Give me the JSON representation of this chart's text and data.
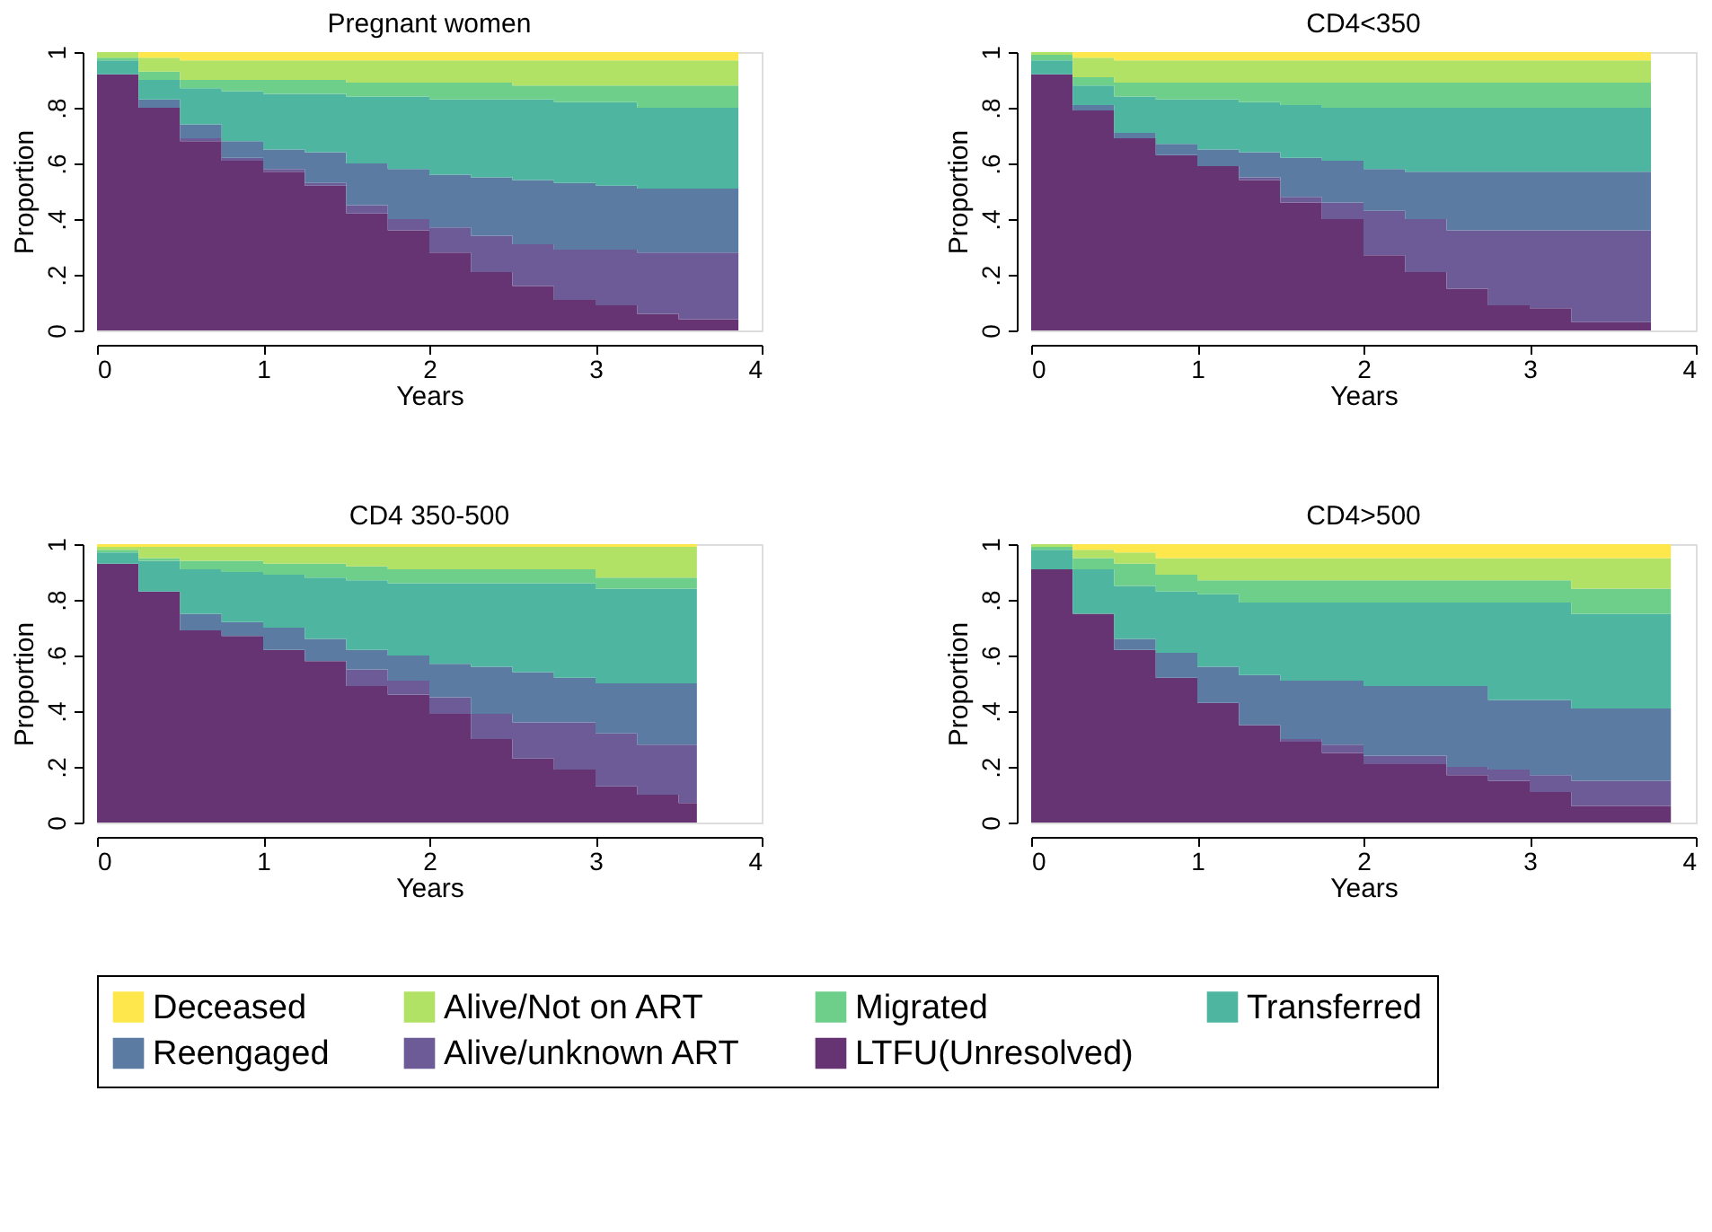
{
  "chart_data": [
    {
      "type": "area",
      "stacked": true,
      "title": "Pregnant women",
      "xlabel": "Years",
      "ylabel": "Proportion",
      "legend": "bottom",
      "xlim": [
        0,
        4
      ],
      "xticks": [
        0,
        1,
        2,
        3,
        4
      ],
      "ylim": [
        0,
        1
      ],
      "yticks": [
        0,
        {
          "value": 0.2,
          "label": ".2"
        },
        {
          "value": 0.4,
          "label": ".4"
        },
        {
          "value": 0.6,
          "label": ".6"
        },
        {
          "value": 0.8,
          "label": ".8"
        },
        1
      ],
      "x": [
        0,
        0.25,
        0.5,
        0.75,
        1,
        1.25,
        1.5,
        1.75,
        2,
        2.25,
        2.5,
        2.75,
        3,
        3.25,
        3.5,
        3.86
      ],
      "series": [
        {
          "name": "LTFU(Unresolved)",
          "color": "#673473",
          "values": [
            0.92,
            0.8,
            0.68,
            0.61,
            0.57,
            0.52,
            0.42,
            0.36,
            0.28,
            0.21,
            0.16,
            0.11,
            0.09,
            0.06,
            0.04,
            0.01
          ]
        },
        {
          "name": "Alive/unknown ART",
          "color": "#6c5b97",
          "values": [
            0,
            0,
            0.01,
            0.01,
            0.01,
            0.01,
            0.03,
            0.04,
            0.09,
            0.13,
            0.15,
            0.18,
            0.2,
            0.22,
            0.24,
            0.27
          ]
        },
        {
          "name": "Reengaged",
          "color": "#5b7ba3",
          "values": [
            0,
            0.03,
            0.05,
            0.06,
            0.07,
            0.11,
            0.15,
            0.18,
            0.19,
            0.21,
            0.23,
            0.24,
            0.23,
            0.23,
            0.23,
            0.23
          ]
        },
        {
          "name": "Transferred",
          "color": "#4eb5a0",
          "values": [
            0.05,
            0.07,
            0.13,
            0.18,
            0.2,
            0.21,
            0.24,
            0.26,
            0.27,
            0.28,
            0.29,
            0.29,
            0.3,
            0.29,
            0.29,
            0.29
          ]
        },
        {
          "name": "Migrated",
          "color": "#6ecf8a",
          "values": [
            0.01,
            0.03,
            0.03,
            0.04,
            0.05,
            0.05,
            0.05,
            0.05,
            0.06,
            0.06,
            0.05,
            0.06,
            0.06,
            0.08,
            0.08,
            0.08
          ]
        },
        {
          "name": "Alive/Not on ART",
          "color": "#b2e265",
          "values": [
            0.02,
            0.05,
            0.07,
            0.07,
            0.07,
            0.07,
            0.08,
            0.08,
            0.08,
            0.08,
            0.09,
            0.09,
            0.09,
            0.09,
            0.09,
            0.09
          ]
        },
        {
          "name": "Deceased",
          "color": "#fde74c",
          "values": [
            0,
            0.02,
            0.03,
            0.03,
            0.03,
            0.03,
            0.03,
            0.03,
            0.03,
            0.03,
            0.03,
            0.03,
            0.03,
            0.03,
            0.03,
            0.03
          ]
        }
      ]
    },
    {
      "type": "area",
      "stacked": true,
      "title": "CD4<350",
      "xlabel": "Years",
      "ylabel": "Proportion",
      "legend": "bottom",
      "xlim": [
        0,
        4
      ],
      "xticks": [
        0,
        1,
        2,
        3,
        4
      ],
      "ylim": [
        0,
        1
      ],
      "yticks": [
        0,
        {
          "value": 0.2,
          "label": ".2"
        },
        {
          "value": 0.4,
          "label": ".4"
        },
        {
          "value": 0.6,
          "label": ".6"
        },
        {
          "value": 0.8,
          "label": ".8"
        },
        1
      ],
      "x": [
        0,
        0.25,
        0.5,
        0.75,
        1,
        1.25,
        1.5,
        1.75,
        2,
        2.25,
        2.5,
        2.75,
        3,
        3.25,
        3.5,
        3.73
      ],
      "series": [
        {
          "name": "LTFU(Unresolved)",
          "color": "#673473",
          "values": [
            0.92,
            0.79,
            0.69,
            0.63,
            0.59,
            0.54,
            0.46,
            0.4,
            0.27,
            0.21,
            0.15,
            0.09,
            0.08,
            0.03,
            0.03,
            0.03
          ]
        },
        {
          "name": "Alive/unknown ART",
          "color": "#6c5b97",
          "values": [
            0,
            0,
            0,
            0,
            0,
            0.01,
            0.02,
            0.06,
            0.16,
            0.19,
            0.21,
            0.27,
            0.28,
            0.33,
            0.33,
            0.33
          ]
        },
        {
          "name": "Reengaged",
          "color": "#5b7ba3",
          "values": [
            0,
            0.02,
            0.02,
            0.04,
            0.06,
            0.09,
            0.14,
            0.15,
            0.15,
            0.17,
            0.21,
            0.21,
            0.21,
            0.21,
            0.21,
            0.21
          ]
        },
        {
          "name": "Transferred",
          "color": "#4eb5a0",
          "values": [
            0.05,
            0.07,
            0.13,
            0.16,
            0.18,
            0.18,
            0.19,
            0.19,
            0.22,
            0.23,
            0.23,
            0.23,
            0.23,
            0.23,
            0.23,
            0.23
          ]
        },
        {
          "name": "Migrated",
          "color": "#6ecf8a",
          "values": [
            0.02,
            0.03,
            0.05,
            0.06,
            0.06,
            0.07,
            0.08,
            0.09,
            0.09,
            0.09,
            0.09,
            0.09,
            0.09,
            0.09,
            0.09,
            0.09
          ]
        },
        {
          "name": "Alive/Not on ART",
          "color": "#b2e265",
          "values": [
            0.01,
            0.07,
            0.08,
            0.08,
            0.08,
            0.08,
            0.08,
            0.08,
            0.08,
            0.08,
            0.08,
            0.08,
            0.08,
            0.08,
            0.08,
            0.08
          ]
        },
        {
          "name": "Deceased",
          "color": "#fde74c",
          "values": [
            0,
            0.02,
            0.03,
            0.03,
            0.03,
            0.03,
            0.03,
            0.03,
            0.03,
            0.03,
            0.03,
            0.03,
            0.03,
            0.03,
            0.03,
            0.03
          ]
        }
      ]
    },
    {
      "type": "area",
      "stacked": true,
      "title": "CD4 350-500",
      "xlabel": "Years",
      "ylabel": "Proportion",
      "legend": "bottom",
      "xlim": [
        0,
        4
      ],
      "xticks": [
        0,
        1,
        2,
        3,
        4
      ],
      "ylim": [
        0,
        1
      ],
      "yticks": [
        0,
        {
          "value": 0.2,
          "label": ".2"
        },
        {
          "value": 0.4,
          "label": ".4"
        },
        {
          "value": 0.6,
          "label": ".6"
        },
        {
          "value": 0.8,
          "label": ".8"
        },
        1
      ],
      "x": [
        0,
        0.25,
        0.5,
        0.75,
        1,
        1.25,
        1.5,
        1.75,
        2,
        2.25,
        2.5,
        2.75,
        3,
        3.25,
        3.5,
        3.61
      ],
      "series": [
        {
          "name": "LTFU(Unresolved)",
          "color": "#673473",
          "values": [
            0.93,
            0.83,
            0.69,
            0.67,
            0.62,
            0.58,
            0.49,
            0.46,
            0.39,
            0.3,
            0.23,
            0.19,
            0.13,
            0.1,
            0.07,
            0.04
          ]
        },
        {
          "name": "Alive/unknown ART",
          "color": "#6c5b97",
          "values": [
            0,
            0,
            0,
            0,
            0,
            0,
            0.06,
            0.05,
            0.06,
            0.09,
            0.13,
            0.17,
            0.19,
            0.18,
            0.21,
            0.24
          ]
        },
        {
          "name": "Reengaged",
          "color": "#5b7ba3",
          "values": [
            0,
            0,
            0.06,
            0.05,
            0.08,
            0.08,
            0.07,
            0.09,
            0.12,
            0.17,
            0.18,
            0.16,
            0.18,
            0.22,
            0.22,
            0.22
          ]
        },
        {
          "name": "Transferred",
          "color": "#4eb5a0",
          "values": [
            0.04,
            0.11,
            0.16,
            0.18,
            0.19,
            0.22,
            0.25,
            0.26,
            0.29,
            0.3,
            0.32,
            0.34,
            0.34,
            0.34,
            0.34,
            0.34
          ]
        },
        {
          "name": "Migrated",
          "color": "#6ecf8a",
          "values": [
            0.01,
            0.01,
            0.03,
            0.04,
            0.04,
            0.05,
            0.05,
            0.05,
            0.05,
            0.05,
            0.05,
            0.05,
            0.04,
            0.04,
            0.04,
            0.04
          ]
        },
        {
          "name": "Alive/Not on ART",
          "color": "#b2e265",
          "values": [
            0.01,
            0.04,
            0.05,
            0.05,
            0.06,
            0.06,
            0.07,
            0.08,
            0.08,
            0.08,
            0.08,
            0.08,
            0.11,
            0.11,
            0.11,
            0.11
          ]
        },
        {
          "name": "Deceased",
          "color": "#fde74c",
          "values": [
            0.01,
            0.01,
            0.01,
            0.01,
            0.01,
            0.01,
            0.01,
            0.01,
            0.01,
            0.01,
            0.01,
            0.01,
            0.01,
            0.01,
            0.01,
            0.01
          ]
        }
      ]
    },
    {
      "type": "area",
      "stacked": true,
      "title": "CD4>500",
      "xlabel": "Years",
      "ylabel": "Proportion",
      "legend": "bottom",
      "xlim": [
        0,
        4
      ],
      "xticks": [
        0,
        1,
        2,
        3,
        4
      ],
      "ylim": [
        0,
        1
      ],
      "yticks": [
        0,
        {
          "value": 0.2,
          "label": ".2"
        },
        {
          "value": 0.4,
          "label": ".4"
        },
        {
          "value": 0.6,
          "label": ".6"
        },
        {
          "value": 0.8,
          "label": ".8"
        },
        1
      ],
      "x": [
        0,
        0.25,
        0.5,
        0.75,
        1,
        1.25,
        1.5,
        1.75,
        2,
        2.25,
        2.5,
        2.75,
        3,
        3.25,
        3.5,
        3.85
      ],
      "series": [
        {
          "name": "LTFU(Unresolved)",
          "color": "#673473",
          "values": [
            0.91,
            0.75,
            0.62,
            0.52,
            0.43,
            0.35,
            0.29,
            0.25,
            0.21,
            0.21,
            0.17,
            0.15,
            0.11,
            0.06,
            0.06,
            0.06
          ]
        },
        {
          "name": "Alive/unknown ART",
          "color": "#6c5b97",
          "values": [
            0,
            0,
            0,
            0,
            0,
            0,
            0.01,
            0.03,
            0.03,
            0.03,
            0.03,
            0.04,
            0.06,
            0.09,
            0.09,
            0.09
          ]
        },
        {
          "name": "Reengaged",
          "color": "#5b7ba3",
          "values": [
            0,
            0,
            0.04,
            0.09,
            0.13,
            0.18,
            0.21,
            0.23,
            0.25,
            0.25,
            0.29,
            0.25,
            0.27,
            0.26,
            0.26,
            0.26
          ]
        },
        {
          "name": "Transferred",
          "color": "#4eb5a0",
          "values": [
            0.07,
            0.16,
            0.19,
            0.22,
            0.26,
            0.26,
            0.28,
            0.28,
            0.3,
            0.3,
            0.3,
            0.35,
            0.35,
            0.34,
            0.34,
            0.34
          ]
        },
        {
          "name": "Migrated",
          "color": "#6ecf8a",
          "values": [
            0.01,
            0.04,
            0.08,
            0.06,
            0.05,
            0.08,
            0.08,
            0.08,
            0.08,
            0.08,
            0.08,
            0.08,
            0.08,
            0.09,
            0.09,
            0.09
          ]
        },
        {
          "name": "Alive/Not on ART",
          "color": "#b2e265",
          "values": [
            0.01,
            0.03,
            0.04,
            0.06,
            0.08,
            0.08,
            0.08,
            0.08,
            0.08,
            0.08,
            0.08,
            0.08,
            0.08,
            0.11,
            0.11,
            0.11
          ]
        },
        {
          "name": "Deceased",
          "color": "#fde74c",
          "values": [
            0,
            0.02,
            0.03,
            0.05,
            0.05,
            0.05,
            0.05,
            0.05,
            0.05,
            0.05,
            0.05,
            0.05,
            0.05,
            0.05,
            0.05,
            0.05
          ]
        }
      ]
    }
  ]
}
